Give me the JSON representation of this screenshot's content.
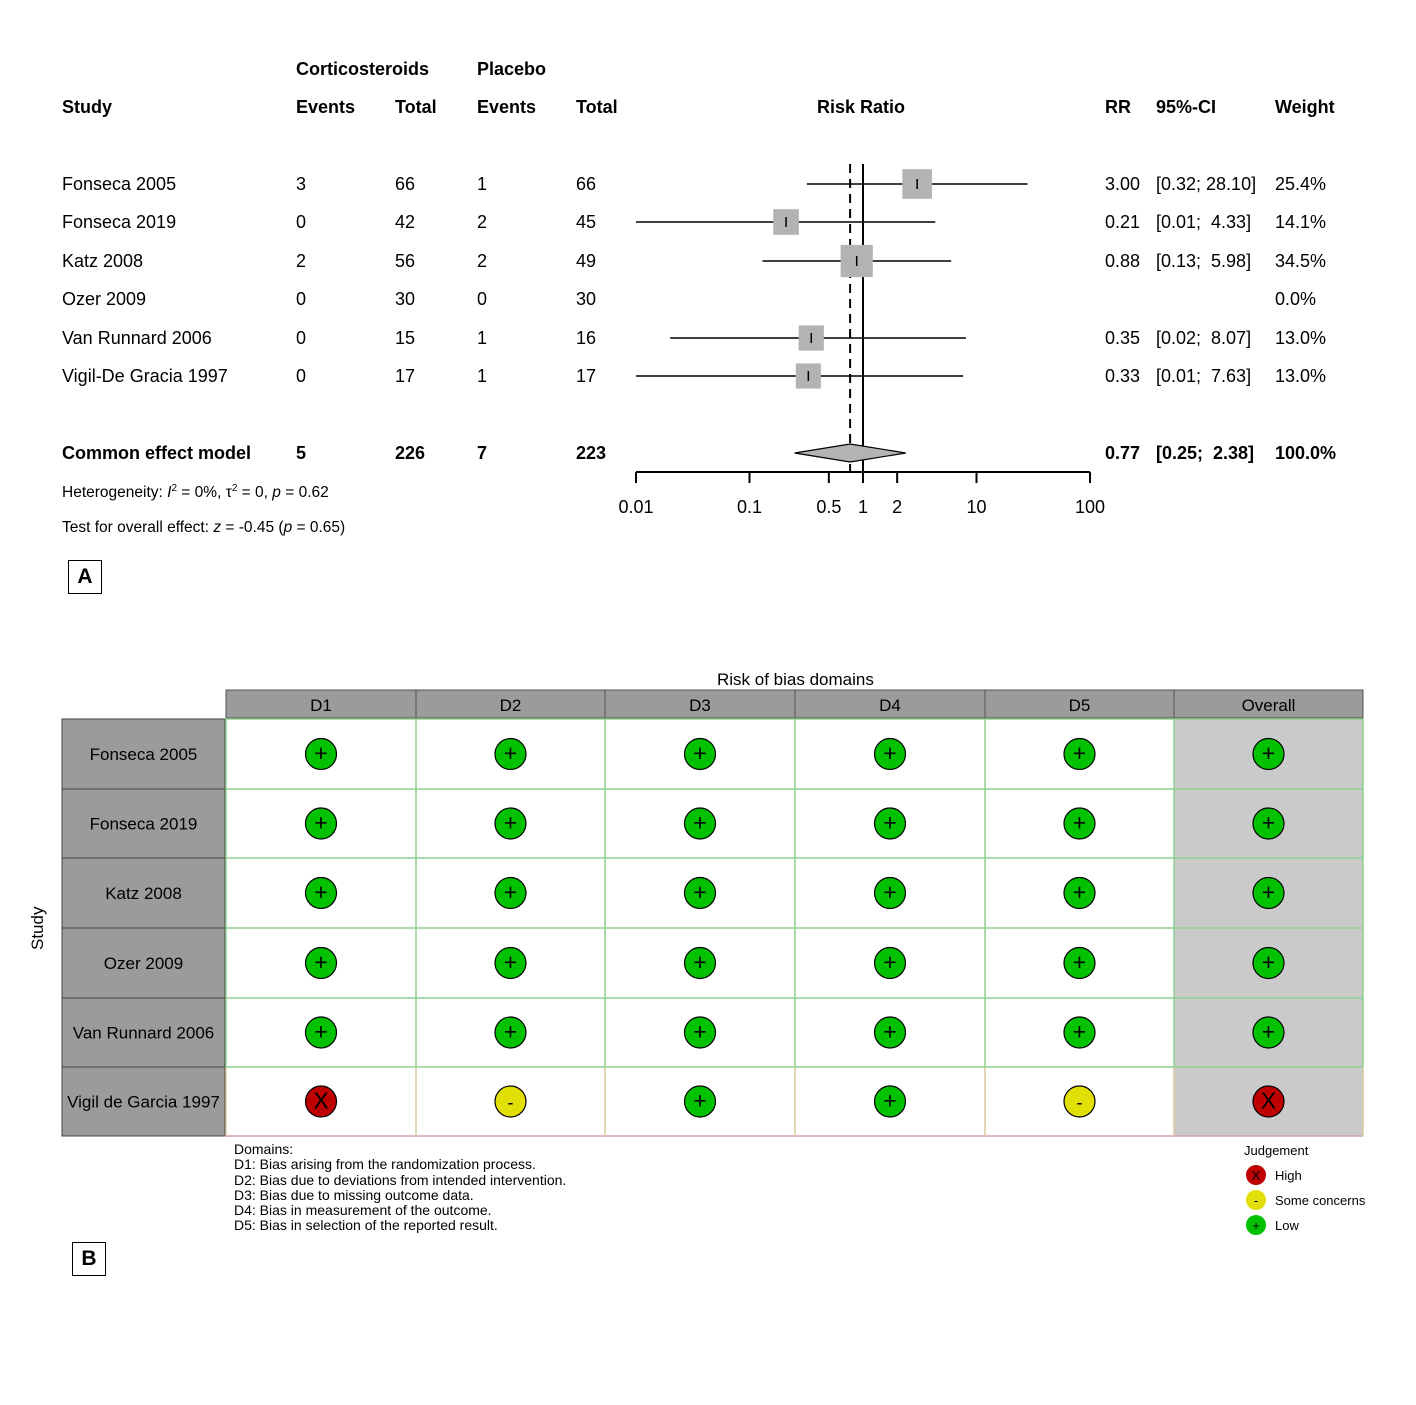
{
  "forest": {
    "panel_label": "A",
    "headers": {
      "group1": "Corticosteroids",
      "group2": "Placebo",
      "study": "Study",
      "events1": "Events",
      "total1": "Total",
      "events2": "Events",
      "total2": "Total",
      "plot": "Risk Ratio",
      "rr": "RR",
      "ci": "95%-CI",
      "weight": "Weight"
    },
    "studies": [
      {
        "study": "Fonseca 2005",
        "e1": "3",
        "t1": "66",
        "e2": "1",
        "t2": "66",
        "rr_text": "3.00",
        "ci_text": "[0.32; 28.10]",
        "weight_text": "25.4%",
        "rr": 3.0,
        "lo": 0.32,
        "hi": 28.1,
        "w": 25.4
      },
      {
        "study": "Fonseca 2019",
        "e1": "0",
        "t1": "42",
        "e2": "2",
        "t2": "45",
        "rr_text": "0.21",
        "ci_text": "[0.01;  4.33]",
        "weight_text": "14.1%",
        "rr": 0.21,
        "lo": 0.01,
        "hi": 4.33,
        "w": 14.1
      },
      {
        "study": "Katz 2008",
        "e1": "2",
        "t1": "56",
        "e2": "2",
        "t2": "49",
        "rr_text": "0.88",
        "ci_text": "[0.13;  5.98]",
        "weight_text": "34.5%",
        "rr": 0.88,
        "lo": 0.13,
        "hi": 5.98,
        "w": 34.5
      },
      {
        "study": "Ozer 2009",
        "e1": "0",
        "t1": "30",
        "e2": "0",
        "t2": "30",
        "rr_text": "",
        "ci_text": "",
        "weight_text": "0.0%",
        "rr": null,
        "lo": null,
        "hi": null,
        "w": 0
      },
      {
        "study": "Van Runnard 2006",
        "e1": "0",
        "t1": "15",
        "e2": "1",
        "t2": "16",
        "rr_text": "0.35",
        "ci_text": "[0.02;  8.07]",
        "weight_text": "13.0%",
        "rr": 0.35,
        "lo": 0.02,
        "hi": 8.07,
        "w": 13.0
      },
      {
        "study": "Vigil-De Gracia 1997",
        "e1": "0",
        "t1": "17",
        "e2": "1",
        "t2": "17",
        "rr_text": "0.33",
        "ci_text": "[0.01;  7.63]",
        "weight_text": "13.0%",
        "rr": 0.33,
        "lo": 0.01,
        "hi": 7.63,
        "w": 13.0
      }
    ],
    "overall": {
      "label": "Common effect model",
      "e1": "5",
      "t1": "226",
      "e2": "7",
      "t2": "223",
      "rr_text": "0.77",
      "ci_text": "[0.25;  2.38]",
      "weight_text": "100.0%",
      "rr": 0.77,
      "lo": 0.25,
      "hi": 2.38
    },
    "heterogeneity": {
      "prefix": "Heterogeneity: ",
      "i2_sym": "I",
      "sq": "2",
      "i2_val": " = 0%, ",
      "tau_sym": "τ",
      "tau_val": " = 0, ",
      "p_sym": "p",
      "p_val": " = 0.62"
    },
    "overall_test": {
      "prefix": "Test for overall effect: ",
      "z_sym": "z",
      "z_val": " = -0.45 (",
      "p_sym": "p",
      "p_val": " = 0.65)"
    },
    "axis": {
      "scale": "log",
      "min": 0.01,
      "max": 100,
      "ticks": [
        0.01,
        0.1,
        0.5,
        1,
        2,
        10,
        100
      ],
      "tick_labels": [
        "0.01",
        "0.1",
        "0.5",
        "1",
        "2",
        "10",
        "100"
      ],
      "null_value": 1
    }
  },
  "chart_data": {
    "type": "scatter",
    "subtype": "forest",
    "title": "",
    "xlabel": "Risk Ratio",
    "xscale": "log",
    "xlim": [
      0.01,
      100
    ],
    "reference_line": 1,
    "pooled_estimate_line": 0.77,
    "categories": [
      "Fonseca 2005",
      "Fonseca 2019",
      "Katz 2008",
      "Ozer 2009",
      "Van Runnard 2006",
      "Vigil-De Gracia 1997",
      "Common effect model"
    ],
    "series": [
      {
        "name": "RR",
        "values": [
          3.0,
          0.21,
          0.88,
          null,
          0.35,
          0.33,
          0.77
        ]
      },
      {
        "name": "lower",
        "values": [
          0.32,
          0.01,
          0.13,
          null,
          0.02,
          0.01,
          0.25
        ]
      },
      {
        "name": "upper",
        "values": [
          28.1,
          4.33,
          5.98,
          null,
          8.07,
          7.63,
          2.38
        ]
      },
      {
        "name": "Weight",
        "values": [
          25.4,
          14.1,
          34.5,
          0.0,
          13.0,
          13.0,
          100.0
        ]
      }
    ]
  },
  "rob": {
    "panel_label": "B",
    "domains_title": "Risk of bias domains",
    "columns": [
      "D1",
      "D2",
      "D3",
      "D4",
      "D5",
      "Overall"
    ],
    "y_axis_label": "Study",
    "studies": [
      {
        "name": "Fonseca 2005",
        "judgements": [
          "low",
          "low",
          "low",
          "low",
          "low",
          "low"
        ]
      },
      {
        "name": "Fonseca 2019",
        "judgements": [
          "low",
          "low",
          "low",
          "low",
          "low",
          "low"
        ]
      },
      {
        "name": "Katz 2008",
        "judgements": [
          "low",
          "low",
          "low",
          "low",
          "low",
          "low"
        ]
      },
      {
        "name": "Ozer 2009",
        "judgements": [
          "low",
          "low",
          "low",
          "low",
          "low",
          "low"
        ]
      },
      {
        "name": "Van Runnard 2006",
        "judgements": [
          "low",
          "low",
          "low",
          "low",
          "low",
          "low"
        ]
      },
      {
        "name": "Vigil de Garcia 1997",
        "judgements": [
          "high",
          "some",
          "low",
          "low",
          "some",
          "high"
        ]
      }
    ],
    "symbols": {
      "high": "X",
      "some": "-",
      "low": "+"
    },
    "colors": {
      "high": "#BF0000",
      "some": "#E2DF07",
      "low": "#02C100",
      "header": "#9b9b9b",
      "study_cell": "#9b9b9b",
      "overall_cell": "#cacaca"
    },
    "domains_note": [
      "Domains:",
      "D1: Bias arising from the randomization process.",
      "D2: Bias due to deviations from intended intervention.",
      "D3: Bias due to missing outcome data.",
      "D4: Bias in measurement of the outcome.",
      "D5: Bias in selection of the reported result."
    ],
    "legend": {
      "title": "Judgement",
      "items": [
        {
          "key": "high",
          "label": "High"
        },
        {
          "key": "some",
          "label": "Some concerns"
        },
        {
          "key": "low",
          "label": "Low"
        }
      ]
    }
  }
}
